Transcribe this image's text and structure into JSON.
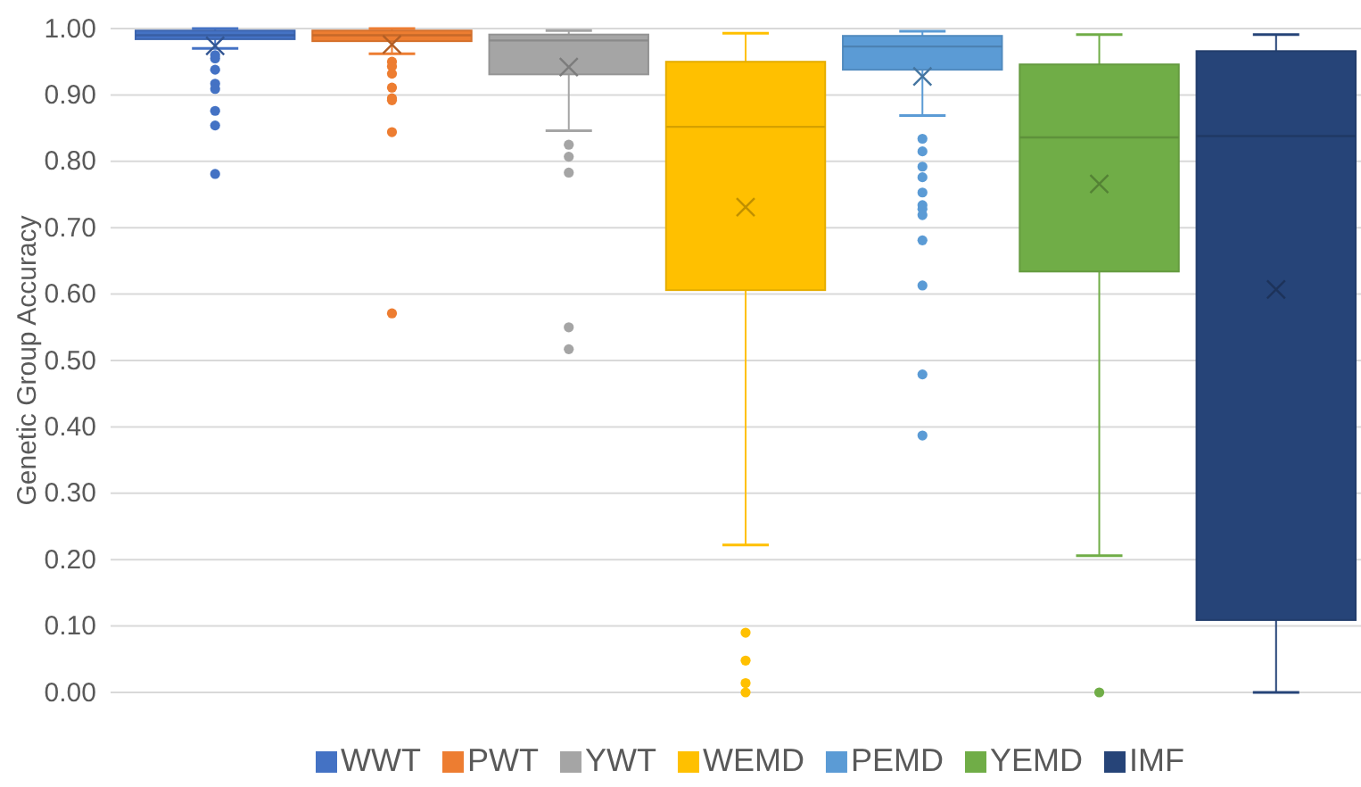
{
  "chart_data": {
    "type": "box",
    "ylabel": "Genetic Group Accuracy",
    "categories": [
      null
    ],
    "ylim": [
      0,
      1
    ],
    "yticks": [
      {
        "value": 0,
        "label": "0.00"
      },
      {
        "value": 0.1,
        "label": "0.10"
      },
      {
        "value": 0.2,
        "label": "0.20"
      },
      {
        "value": 0.3,
        "label": "0.30"
      },
      {
        "value": 0.4,
        "label": "0.40"
      },
      {
        "value": 0.5,
        "label": "0.50"
      },
      {
        "value": 0.6,
        "label": "0.60"
      },
      {
        "value": 0.7,
        "label": "0.70"
      },
      {
        "value": 0.8,
        "label": "0.80"
      },
      {
        "value": 0.9,
        "label": "0.90"
      },
      {
        "value": 1,
        "label": "1.00"
      }
    ],
    "grid": "y",
    "legend": "bottom",
    "marker": "cross",
    "series": [
      {
        "name": "WWT",
        "color": "#4472c4",
        "boxes": [
          {
            "low": 0.97,
            "q1": 0.984,
            "median": 0.99,
            "q3": 0.997,
            "high": 1.0,
            "mean": 0.974,
            "outliers": [
              0.96,
              0.955,
              0.938,
              0.917,
              0.909,
              0.876,
              0.854,
              0.781
            ]
          }
        ]
      },
      {
        "name": "PWT",
        "color": "#ed7d31",
        "boxes": [
          {
            "low": 0.962,
            "q1": 0.981,
            "median": 0.99,
            "q3": 0.997,
            "high": 1.0,
            "mean": 0.976,
            "outliers": [
              0.95,
              0.943,
              0.932,
              0.911,
              0.895,
              0.892,
              0.844,
              0.571
            ]
          }
        ]
      },
      {
        "name": "YWT",
        "color": "#a5a5a5",
        "boxes": [
          {
            "low": 0.846,
            "q1": 0.931,
            "median": 0.982,
            "q3": 0.991,
            "high": 0.997,
            "mean": 0.942,
            "outliers": [
              0.825,
              0.807,
              0.783,
              0.55,
              0.517
            ]
          }
        ]
      },
      {
        "name": "WEMD",
        "color": "#ffc000",
        "boxes": [
          {
            "low": 0.222,
            "q1": 0.606,
            "median": 0.852,
            "q3": 0.95,
            "high": 0.993,
            "mean": 0.731,
            "outliers": [
              0.09,
              0.048,
              0.014,
              0.0
            ]
          }
        ]
      },
      {
        "name": "PEMD",
        "color": "#5b9bd5",
        "boxes": [
          {
            "low": 0.869,
            "q1": 0.938,
            "median": 0.973,
            "q3": 0.989,
            "high": 0.996,
            "mean": 0.928,
            "outliers": [
              0.834,
              0.815,
              0.792,
              0.776,
              0.753,
              0.734,
              0.728,
              0.719,
              0.681,
              0.613,
              0.479,
              0.387
            ]
          }
        ]
      },
      {
        "name": "YEMD",
        "color": "#70ad47",
        "boxes": [
          {
            "low": 0.206,
            "q1": 0.634,
            "median": 0.836,
            "q3": 0.946,
            "high": 0.991,
            "mean": 0.766,
            "outliers": [
              0.0
            ]
          }
        ]
      },
      {
        "name": "IMF",
        "color": "#264478",
        "boxes": [
          {
            "low": 0.0,
            "q1": 0.109,
            "median": 0.838,
            "q3": 0.966,
            "high": 0.991,
            "mean": 0.607
          }
        ]
      }
    ]
  }
}
